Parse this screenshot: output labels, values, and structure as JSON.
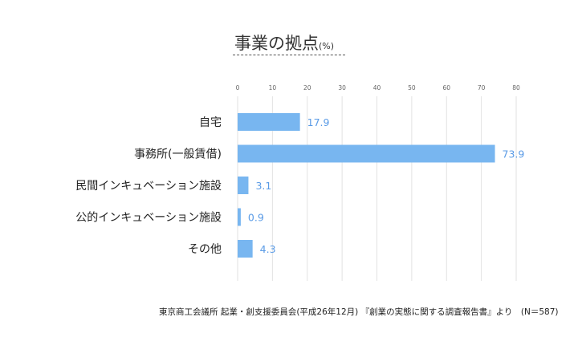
{
  "chart_data": {
    "type": "bar",
    "orientation": "horizontal",
    "title": "事業の拠点",
    "title_unit": "(%)",
    "categories": [
      "自宅",
      "事務所(一般賃借)",
      "民間インキュベーション施設",
      "公的インキュベーション施設",
      "その他"
    ],
    "values": [
      17.9,
      73.9,
      3.1,
      0.9,
      4.3
    ],
    "value_labels": [
      "17.9",
      "73.9",
      "3.1",
      "0.9",
      "4.3"
    ],
    "xlim": [
      0,
      80
    ],
    "ticks": [
      "0",
      "10",
      "20",
      "30",
      "40",
      "50",
      "60",
      "70",
      "80"
    ],
    "grid": true,
    "bar_color": "#78b6f0",
    "label_color": "#5a9be6",
    "source": "東京商工会議所 起業・創支援委員会(平成26年12月) 『創業の実態に関する調査報告書』より　(N＝587)"
  }
}
